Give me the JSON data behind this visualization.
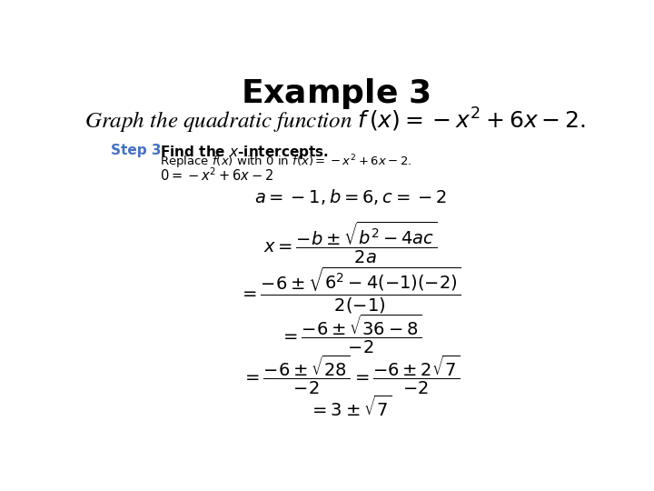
{
  "title": "Example 3",
  "subtitle_parts": [
    "Graph the quadratic function",
    "$f(x) = -x^2 + 6x - 2.$"
  ],
  "step_label": "Step 3",
  "step_bold_text": "Find the x-intercepts.",
  "step_regular_text": "Replace f(x) with 0 in f(x) = −x² + 6x − 2.",
  "step_line2": "0 = −x² + 6x − 2",
  "bg_color": "#ffffff",
  "title_color": "#000000",
  "subtitle_color": "#000000",
  "step_label_color": "#4472c4",
  "title_fontsize": 26,
  "subtitle_fontsize": 18,
  "step_label_fontsize": 11,
  "math_fontsize": 14
}
